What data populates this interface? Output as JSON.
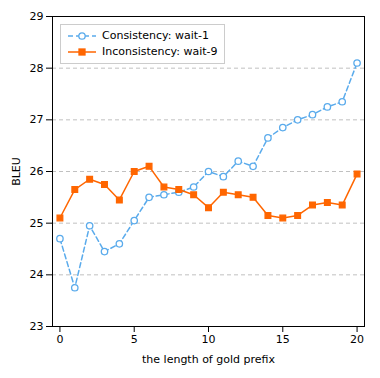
{
  "chart_data": {
    "type": "line",
    "xlabel": "the length of gold prefix",
    "ylabel": "BLEU",
    "x": [
      0,
      1,
      2,
      3,
      4,
      5,
      6,
      7,
      8,
      9,
      10,
      11,
      12,
      13,
      14,
      15,
      16,
      17,
      18,
      19,
      20
    ],
    "series": [
      {
        "name": "Consistency: wait-1",
        "color": "#5aabec",
        "marker": "open_circle",
        "line_style": "dashed",
        "values": [
          24.7,
          23.75,
          24.95,
          24.45,
          24.6,
          25.05,
          25.5,
          25.55,
          25.6,
          25.7,
          26.0,
          25.9,
          26.2,
          26.1,
          26.65,
          26.85,
          27.0,
          27.1,
          27.25,
          27.35,
          28.1
        ]
      },
      {
        "name": "Inconsistency: wait-9",
        "color": "#ff6600",
        "marker": "square",
        "line_style": "solid",
        "values": [
          25.1,
          25.65,
          25.85,
          25.75,
          25.45,
          26.0,
          26.1,
          25.7,
          25.65,
          25.55,
          25.3,
          25.6,
          25.55,
          25.5,
          25.15,
          25.1,
          25.15,
          25.35,
          25.4,
          25.35,
          25.95
        ]
      }
    ],
    "xlim": [
      -0.5,
      20.5
    ],
    "ylim": [
      23,
      29
    ],
    "xticks": [
      0,
      5,
      10,
      15,
      20
    ],
    "yticks": [
      23,
      24,
      25,
      26,
      27,
      28,
      29
    ],
    "grid": true,
    "legend": "upper left"
  }
}
